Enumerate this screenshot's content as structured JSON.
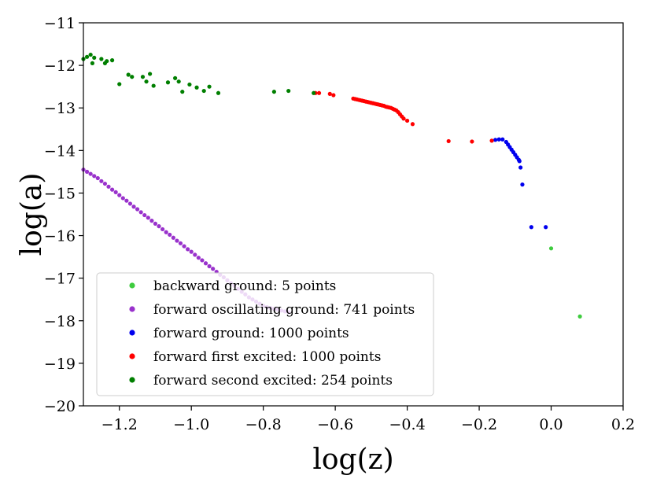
{
  "chart_data": {
    "type": "scatter",
    "xlabel": "log(z)",
    "ylabel": "log(a)",
    "xlim": [
      -1.3,
      0.2
    ],
    "ylim": [
      -20,
      -11
    ],
    "xticks": [
      -1.2,
      -1.0,
      -0.8,
      -0.6,
      -0.4,
      -0.2,
      0.0,
      0.2
    ],
    "xtick_labels": [
      "−1.2",
      "−1.0",
      "−0.8",
      "−0.6",
      "−0.4",
      "−0.2",
      "0.0",
      "0.2"
    ],
    "yticks": [
      -20,
      -19,
      -18,
      -17,
      -16,
      -15,
      -14,
      -13,
      -12,
      -11
    ],
    "ytick_labels": [
      "−20",
      "−19",
      "−18",
      "−17",
      "−16",
      "−15",
      "−14",
      "−13",
      "−12",
      "−11"
    ],
    "legend_position": "lower-left",
    "series": [
      {
        "name": "backward ground: 5 points",
        "color": "#3fcc3f",
        "x": [
          0.0,
          0.08
        ],
        "y": [
          -16.3,
          -17.9
        ]
      },
      {
        "name": "forward oscillating ground: 741 points",
        "color": "#9932cc",
        "x": [
          -1.3,
          -1.29,
          -1.28,
          -1.27,
          -1.26,
          -1.25,
          -1.24,
          -1.23,
          -1.22,
          -1.21,
          -1.2,
          -1.19,
          -1.18,
          -1.17,
          -1.16,
          -1.15,
          -1.14,
          -1.13,
          -1.12,
          -1.11,
          -1.1,
          -1.09,
          -1.08,
          -1.07,
          -1.06,
          -1.05,
          -1.04,
          -1.03,
          -1.02,
          -1.01,
          -1.0,
          -0.99,
          -0.98,
          -0.97,
          -0.96,
          -0.95,
          -0.94,
          -0.93,
          -0.92,
          -0.91,
          -0.9,
          -0.89,
          -0.88,
          -0.87,
          -0.86,
          -0.85,
          -0.84,
          -0.83,
          -0.82,
          -0.81,
          -0.8,
          -0.79,
          -0.78,
          -0.77,
          -0.76,
          -0.75,
          -0.74,
          -0.73
        ],
        "y": [
          -14.45,
          -14.5,
          -14.55,
          -14.6,
          -14.65,
          -14.72,
          -14.78,
          -14.85,
          -14.92,
          -14.98,
          -15.05,
          -15.12,
          -15.18,
          -15.25,
          -15.32,
          -15.38,
          -15.45,
          -15.52,
          -15.58,
          -15.65,
          -15.72,
          -15.78,
          -15.85,
          -15.92,
          -15.98,
          -16.05,
          -16.12,
          -16.18,
          -16.25,
          -16.32,
          -16.38,
          -16.45,
          -16.52,
          -16.58,
          -16.65,
          -16.72,
          -16.78,
          -16.85,
          -16.92,
          -16.98,
          -17.05,
          -17.12,
          -17.18,
          -17.25,
          -17.32,
          -17.38,
          -17.45,
          -17.5,
          -17.55,
          -17.6,
          -17.65,
          -17.68,
          -17.7,
          -17.72,
          -17.74,
          -17.76,
          -17.78,
          -17.8
        ]
      },
      {
        "name": "forward ground: 1000 points",
        "color": "#0000ee",
        "x": [
          -0.155,
          -0.145,
          -0.135,
          -0.125,
          -0.12,
          -0.115,
          -0.11,
          -0.105,
          -0.1,
          -0.095,
          -0.09,
          -0.088,
          -0.085,
          -0.08,
          -0.055,
          -0.015
        ],
        "y": [
          -13.75,
          -13.74,
          -13.74,
          -13.8,
          -13.86,
          -13.92,
          -13.98,
          -14.04,
          -14.1,
          -14.16,
          -14.22,
          -14.25,
          -14.4,
          -14.8,
          -15.8,
          -15.8
        ]
      },
      {
        "name": "forward first excited: 1000 points",
        "color": "#ff0000",
        "x": [
          -0.655,
          -0.645,
          -0.615,
          -0.605,
          -0.55,
          -0.545,
          -0.54,
          -0.535,
          -0.53,
          -0.525,
          -0.52,
          -0.515,
          -0.51,
          -0.505,
          -0.5,
          -0.495,
          -0.49,
          -0.485,
          -0.48,
          -0.475,
          -0.47,
          -0.465,
          -0.46,
          -0.455,
          -0.45,
          -0.445,
          -0.44,
          -0.435,
          -0.43,
          -0.425,
          -0.42,
          -0.415,
          -0.41,
          -0.4,
          -0.385,
          -0.285,
          -0.22,
          -0.165
        ],
        "y": [
          -12.65,
          -12.65,
          -12.67,
          -12.7,
          -12.78,
          -12.79,
          -12.8,
          -12.81,
          -12.82,
          -12.83,
          -12.84,
          -12.85,
          -12.86,
          -12.87,
          -12.88,
          -12.89,
          -12.9,
          -12.91,
          -12.92,
          -12.93,
          -12.94,
          -12.95,
          -12.97,
          -12.98,
          -12.99,
          -13.0,
          -13.02,
          -13.04,
          -13.06,
          -13.1,
          -13.15,
          -13.2,
          -13.25,
          -13.3,
          -13.38,
          -13.78,
          -13.79,
          -13.77
        ]
      },
      {
        "name": "forward second excited: 254 points",
        "color": "#007f00",
        "x": [
          -1.3,
          -1.29,
          -1.28,
          -1.275,
          -1.27,
          -1.25,
          -1.24,
          -1.235,
          -1.22,
          -1.2,
          -1.175,
          -1.165,
          -1.135,
          -1.125,
          -1.115,
          -1.105,
          -1.065,
          -1.045,
          -1.035,
          -1.025,
          -1.005,
          -0.985,
          -0.965,
          -0.95,
          -0.925,
          -0.77,
          -0.73,
          -0.66
        ],
        "y": [
          -11.85,
          -11.8,
          -11.75,
          -11.95,
          -11.82,
          -11.85,
          -11.95,
          -11.9,
          -11.88,
          -12.44,
          -12.22,
          -12.27,
          -12.27,
          -12.38,
          -12.2,
          -12.48,
          -12.4,
          -12.3,
          -12.38,
          -12.62,
          -12.45,
          -12.52,
          -12.6,
          -12.5,
          -12.65,
          -12.62,
          -12.6,
          -12.65
        ]
      }
    ]
  }
}
